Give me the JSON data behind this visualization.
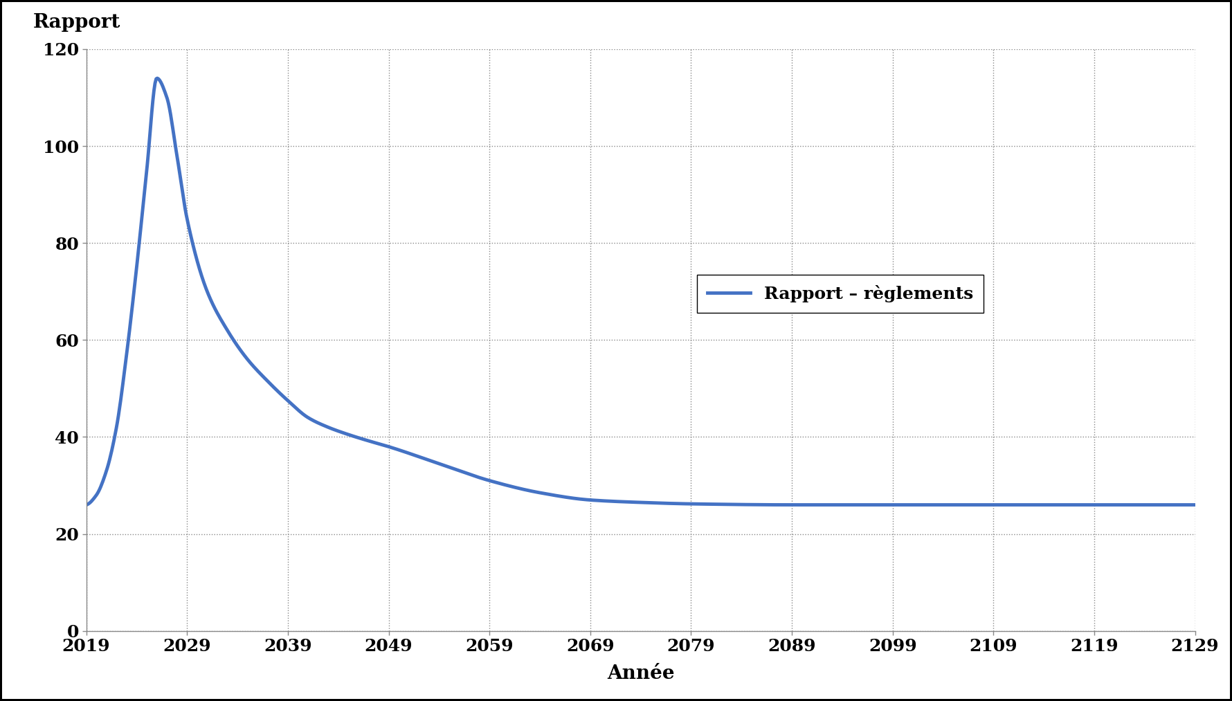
{
  "ylabel": "Rapport",
  "xlabel": "Année",
  "legend_label": "Rapport – règlements",
  "line_color": "#4472C4",
  "line_width": 3.5,
  "ylim": [
    0,
    120
  ],
  "yticks": [
    0,
    20,
    40,
    60,
    80,
    100,
    120
  ],
  "xticks": [
    2019,
    2029,
    2039,
    2049,
    2059,
    2069,
    2079,
    2089,
    2099,
    2109,
    2119,
    2129
  ],
  "x_start": 2019,
  "x_end": 2129,
  "background_color": "#ffffff",
  "grid_color": "#888888",
  "grid_style": "dotted",
  "grid_linewidth": 1.0,
  "font_size_labels": 20,
  "font_size_ticks": 18,
  "font_size_legend": 18,
  "curve_points_x": [
    2019,
    2020,
    2021,
    2022,
    2023,
    2024,
    2025,
    2026,
    2027,
    2028,
    2029,
    2031,
    2033,
    2035,
    2037,
    2039,
    2041,
    2043,
    2045,
    2047,
    2049,
    2054,
    2059,
    2064,
    2069,
    2074,
    2079,
    2089,
    2099,
    2109,
    2119,
    2129
  ],
  "curve_points_y": [
    26.0,
    28.0,
    33.0,
    42.0,
    57.0,
    75.0,
    95.0,
    114.0,
    110.0,
    98.0,
    85.0,
    70.0,
    62.0,
    56.0,
    51.5,
    47.5,
    44.0,
    42.0,
    40.5,
    39.2,
    38.0,
    34.5,
    31.0,
    28.5,
    27.0,
    26.5,
    26.2,
    26.0,
    26.0,
    26.0,
    26.0,
    26.0
  ]
}
